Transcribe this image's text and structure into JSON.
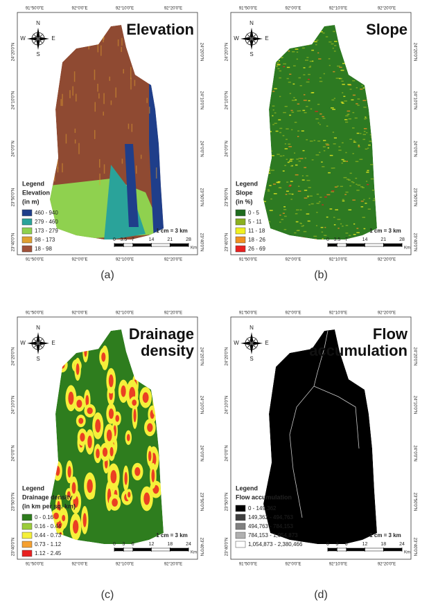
{
  "lon_labels": [
    "91°50'0\"E",
    "92°0'0\"E",
    "92°10'0\"E",
    "92°20'0\"E"
  ],
  "lat_labels": [
    "24°20'0\"N",
    "24°10'0\"N",
    "24°0'0\"N",
    "23°50'0\"N",
    "23°40'0\"N"
  ],
  "compass": {
    "n": "N",
    "s": "S",
    "e": "E",
    "w": "W"
  },
  "panels": [
    {
      "caption": "(a)",
      "title": [
        "Elevation"
      ],
      "legend": {
        "title": "Legend",
        "subtitle": [
          "Elevation",
          "(in m)"
        ],
        "items": [
          {
            "color": "#1f3e8a",
            "label": "460 - 940"
          },
          {
            "color": "#2aa39a",
            "label": "279 - 460"
          },
          {
            "color": "#8fd14f",
            "label": "173 - 279"
          },
          {
            "color": "#e0a030",
            "label": "98 - 173"
          },
          {
            "color": "#a0523a",
            "label": "18 - 98"
          }
        ]
      },
      "scale": {
        "text": "1 cm = 3 km",
        "ticks": [
          0,
          3.5,
          7,
          14,
          21,
          28
        ],
        "unit": "Km"
      }
    },
    {
      "caption": "(b)",
      "title": [
        "Slope"
      ],
      "legend": {
        "title": "Legend",
        "subtitle": [
          "Slope",
          "(in %)"
        ],
        "items": [
          {
            "color": "#1e6b1e",
            "label": "0 - 5"
          },
          {
            "color": "#8ab020",
            "label": "5 - 11"
          },
          {
            "color": "#f0f020",
            "label": "11 - 18"
          },
          {
            "color": "#f09020",
            "label": "18 - 26"
          },
          {
            "color": "#e82020",
            "label": "26 - 69"
          }
        ]
      },
      "scale": {
        "text": "1 cm = 3 km",
        "ticks": [
          0,
          3.5,
          7,
          14,
          21,
          28
        ],
        "unit": "Km"
      }
    },
    {
      "caption": "(c)",
      "title": [
        "Drainage",
        "density"
      ],
      "legend": {
        "title": "Legend",
        "subtitle": [
          "Drainage density",
          "(in km per sq. km)"
        ],
        "items": [
          {
            "color": "#2e7d1e",
            "label": "0 - 0.16"
          },
          {
            "color": "#9bcc3b",
            "label": "0.16 - 0.44"
          },
          {
            "color": "#f5f03a",
            "label": "0.44 - 0.73"
          },
          {
            "color": "#f5a030",
            "label": "0.73 - 1.12"
          },
          {
            "color": "#e82020",
            "label": "1.12 - 2.45"
          }
        ]
      },
      "scale": {
        "text": "1 cm = 3 km",
        "ticks": [
          0,
          3,
          6,
          12,
          18,
          24
        ],
        "unit": "Km"
      }
    },
    {
      "caption": "(d)",
      "title": [
        "Flow",
        "accumulation"
      ],
      "legend": {
        "title": "Legend",
        "subtitle": [
          "Flow accumulation"
        ],
        "items": [
          {
            "color": "#000000",
            "label": "0 - 149,362"
          },
          {
            "color": "#404040",
            "label": "149,362 - 494,763"
          },
          {
            "color": "#808080",
            "label": "494,763 - 784,153"
          },
          {
            "color": "#b0b0b0",
            "label": "784,153 - 1,054,873"
          },
          {
            "color": "#ffffff",
            "label": "1,054,873 - 2,380,466"
          }
        ]
      },
      "scale": {
        "text": "1 cm = 3 km",
        "ticks": [
          0,
          3,
          6,
          12,
          18,
          24
        ],
        "unit": "Km"
      }
    }
  ]
}
